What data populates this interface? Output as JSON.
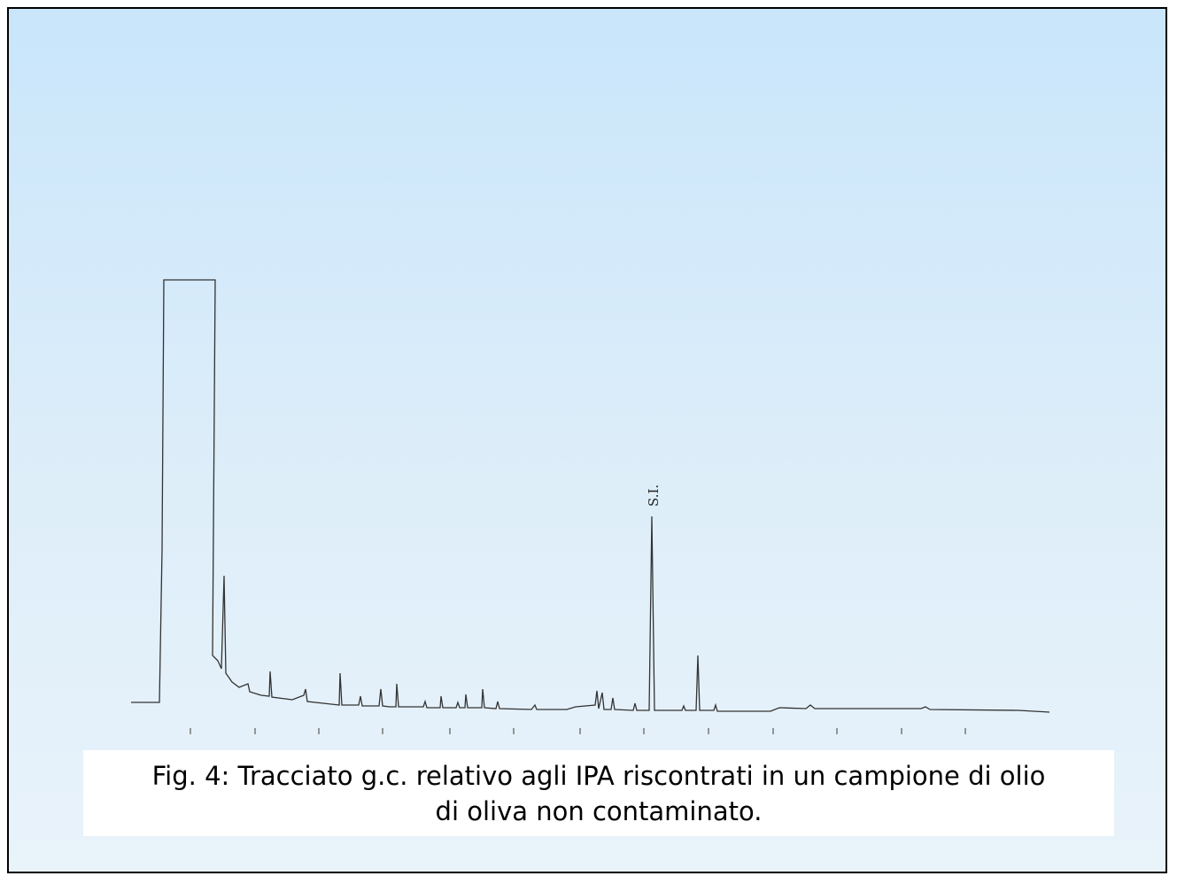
{
  "figure": {
    "peak_label": "S.I.",
    "caption": [
      "Fig. 4: Tracciato g.c. relativo agli IPA riscontrati in un campione di olio",
      "di oliva non contaminato."
    ]
  }
}
